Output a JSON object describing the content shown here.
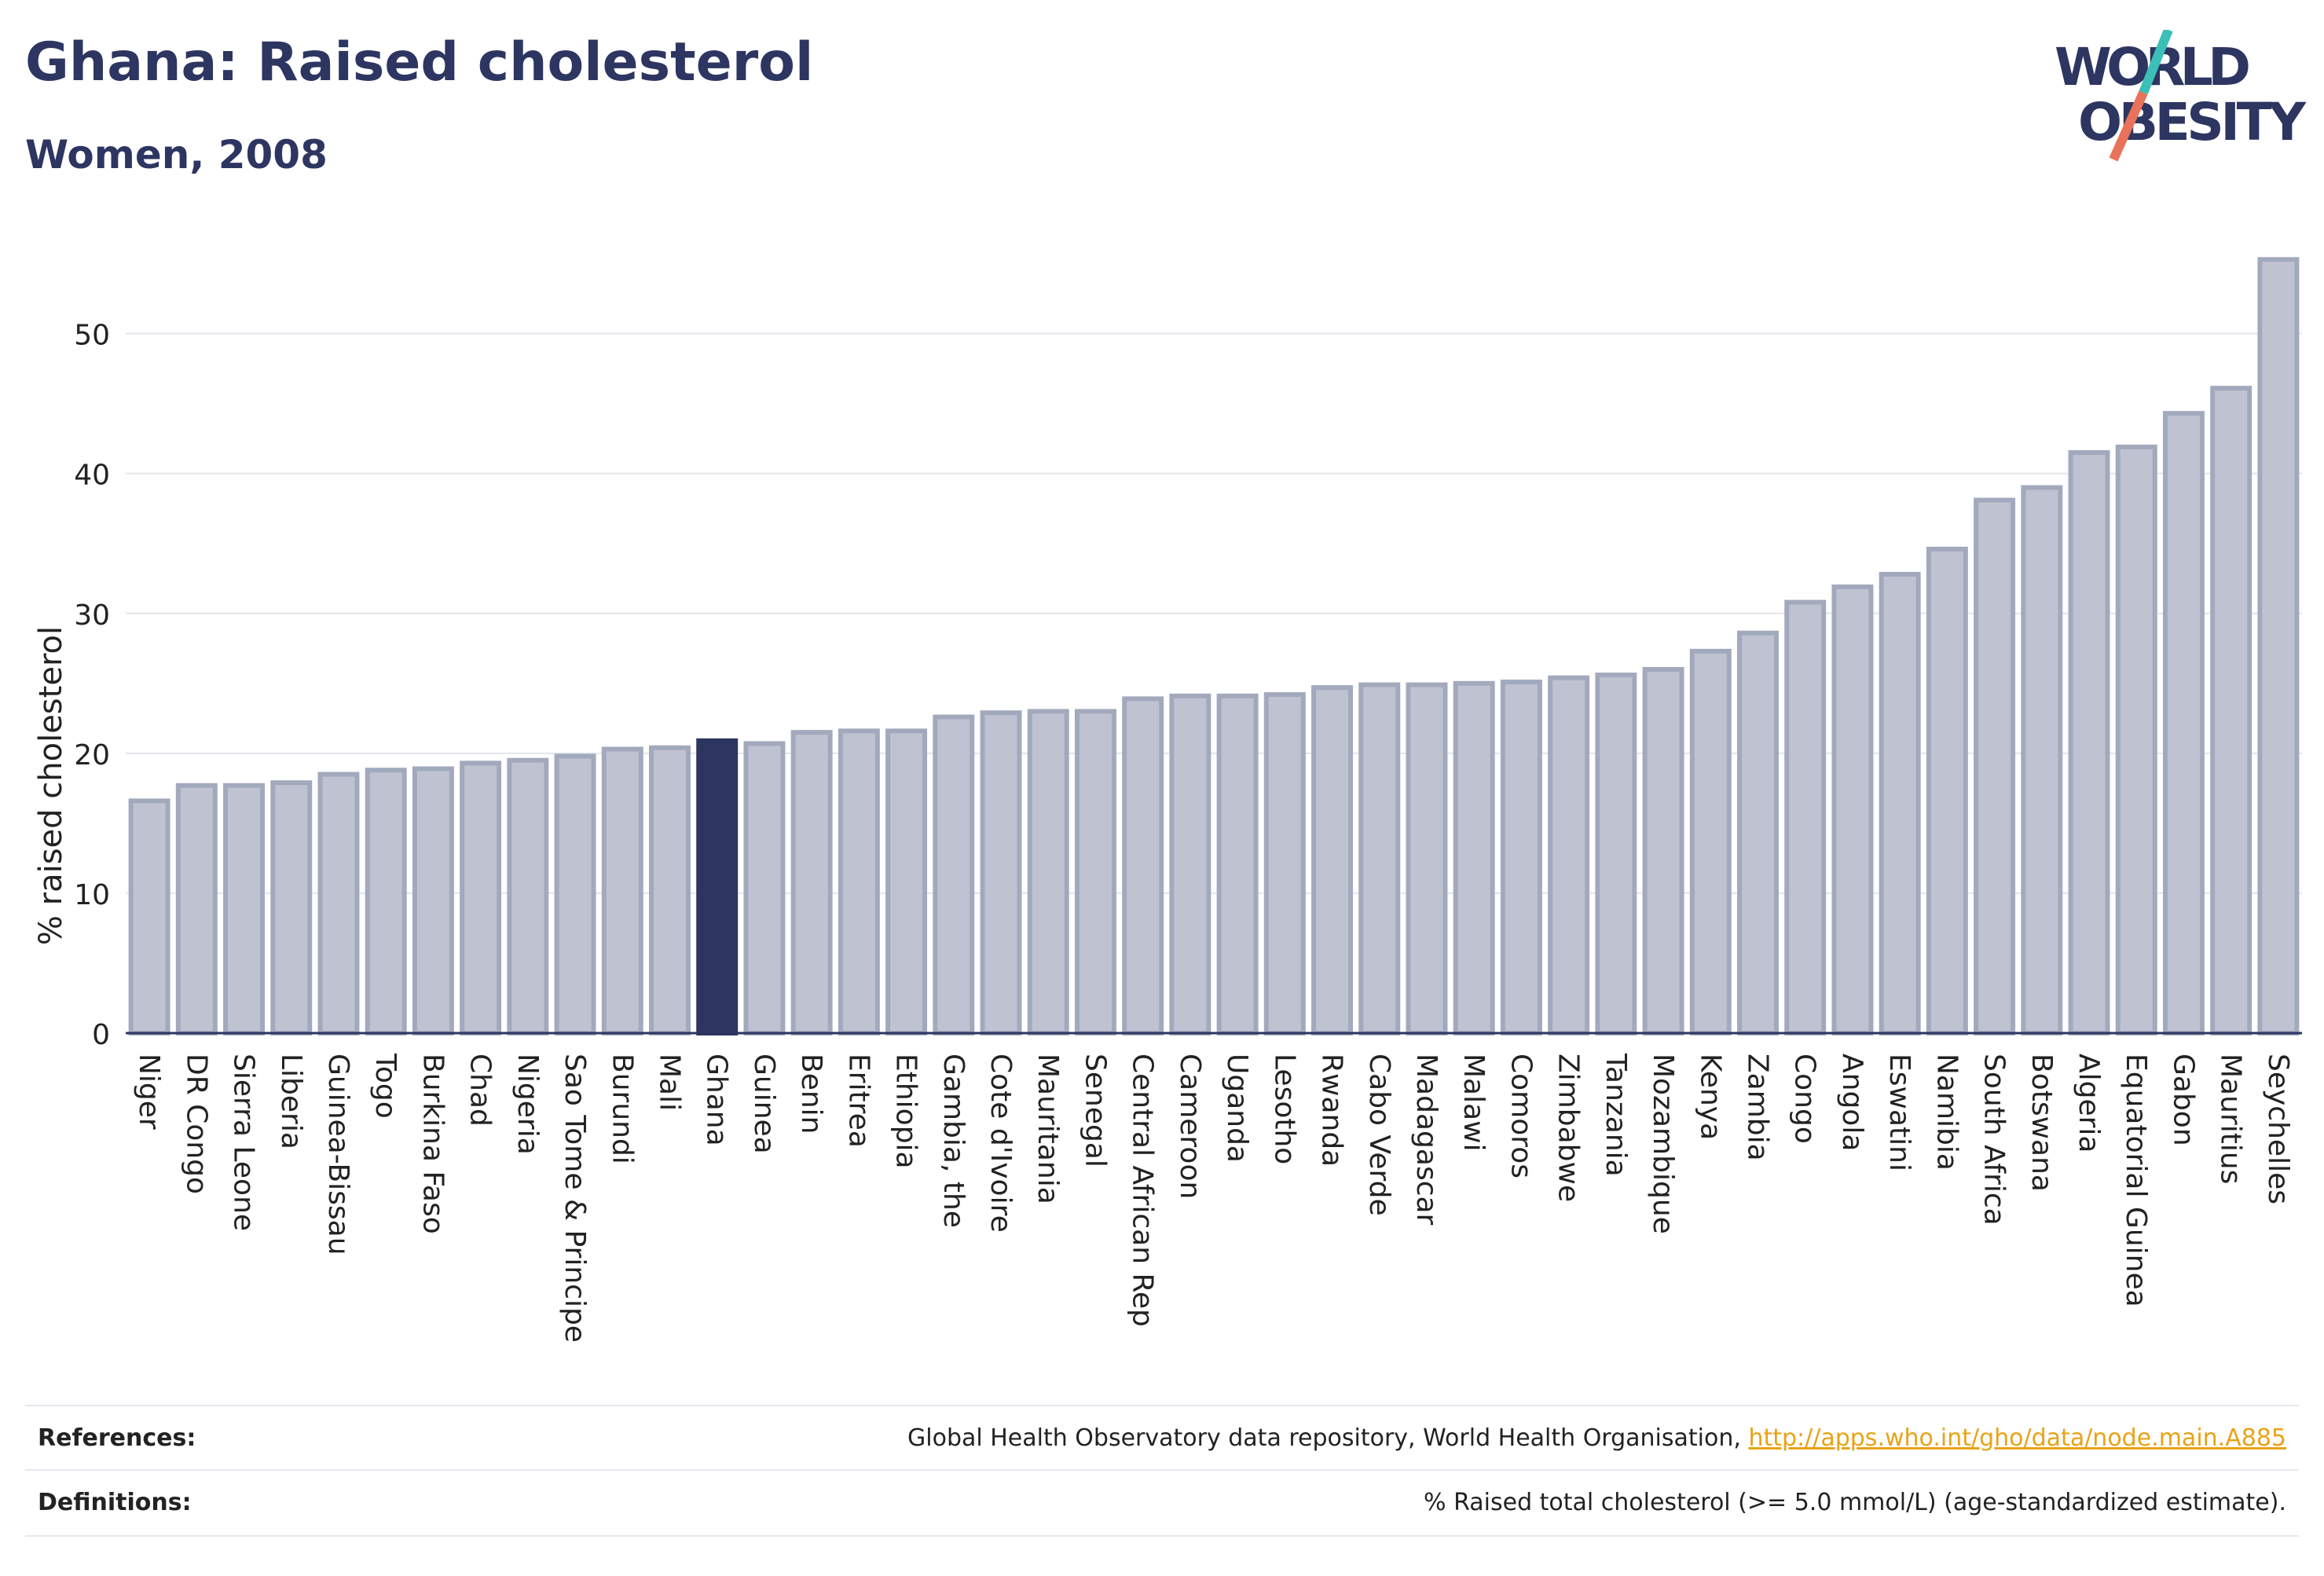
{
  "title": "Ghana: Raised cholesterol",
  "subtitle": "Women, 2008",
  "logo": {
    "line1": "WORLD",
    "line2": "OBESITY"
  },
  "colors": {
    "highlight": "#2d3561",
    "bar": "#bfc3d1",
    "bar_stroke": "#a3a9bd",
    "text": "#2d3561",
    "link": "#e8a317",
    "logo_teal": "#3bbfb7",
    "logo_coral": "#e8735a"
  },
  "references": {
    "label": "References:",
    "text": "Global Health Observatory data repository, World Health Organisation, ",
    "link": "http://apps.who.int/gho/data/node.main.A885"
  },
  "definitions": {
    "label": "Definitions:",
    "text": "% Raised total cholesterol (>= 5.0 mmol/L) (age-standardized estimate)."
  },
  "chart_data": {
    "type": "bar",
    "ylabel": "% raised cholesterol",
    "xlabel": "",
    "ylim": [
      0,
      57
    ],
    "yticks": [
      0,
      10,
      20,
      30,
      40,
      50
    ],
    "grid": true,
    "highlight": "Ghana",
    "categories": [
      "Niger",
      "DR Congo",
      "Sierra Leone",
      "Liberia",
      "Guinea-Bissau",
      "Togo",
      "Burkina Faso",
      "Chad",
      "Nigeria",
      "Sao Tome & Principe",
      "Burundi",
      "Mali",
      "Ghana",
      "Guinea",
      "Benin",
      "Eritrea",
      "Ethiopia",
      "Gambia, the",
      "Cote d'Ivoire",
      "Mauritania",
      "Senegal",
      "Central African Rep",
      "Cameroon",
      "Uganda",
      "Lesotho",
      "Rwanda",
      "Cabo Verde",
      "Madagascar",
      "Malawi",
      "Comoros",
      "Zimbabwe",
      "Tanzania",
      "Mozambique",
      "Kenya",
      "Zambia",
      "Congo",
      "Angola",
      "Eswatini",
      "Namibia",
      "South Africa",
      "Botswana",
      "Algeria",
      "Equatorial Guinea",
      "Gabon",
      "Mauritius",
      "Seychelles"
    ],
    "values": [
      16.6,
      17.7,
      17.7,
      17.9,
      18.5,
      18.8,
      18.9,
      19.3,
      19.5,
      19.8,
      20.3,
      20.4,
      20.9,
      20.7,
      21.5,
      21.6,
      21.6,
      22.6,
      22.9,
      23.0,
      23.0,
      23.9,
      24.1,
      24.1,
      24.2,
      24.7,
      24.9,
      24.9,
      25.0,
      25.1,
      25.4,
      25.6,
      26.0,
      27.3,
      28.6,
      30.8,
      31.9,
      32.8,
      34.6,
      38.1,
      39.0,
      41.5,
      41.9,
      44.3,
      46.1,
      55.3
    ]
  }
}
